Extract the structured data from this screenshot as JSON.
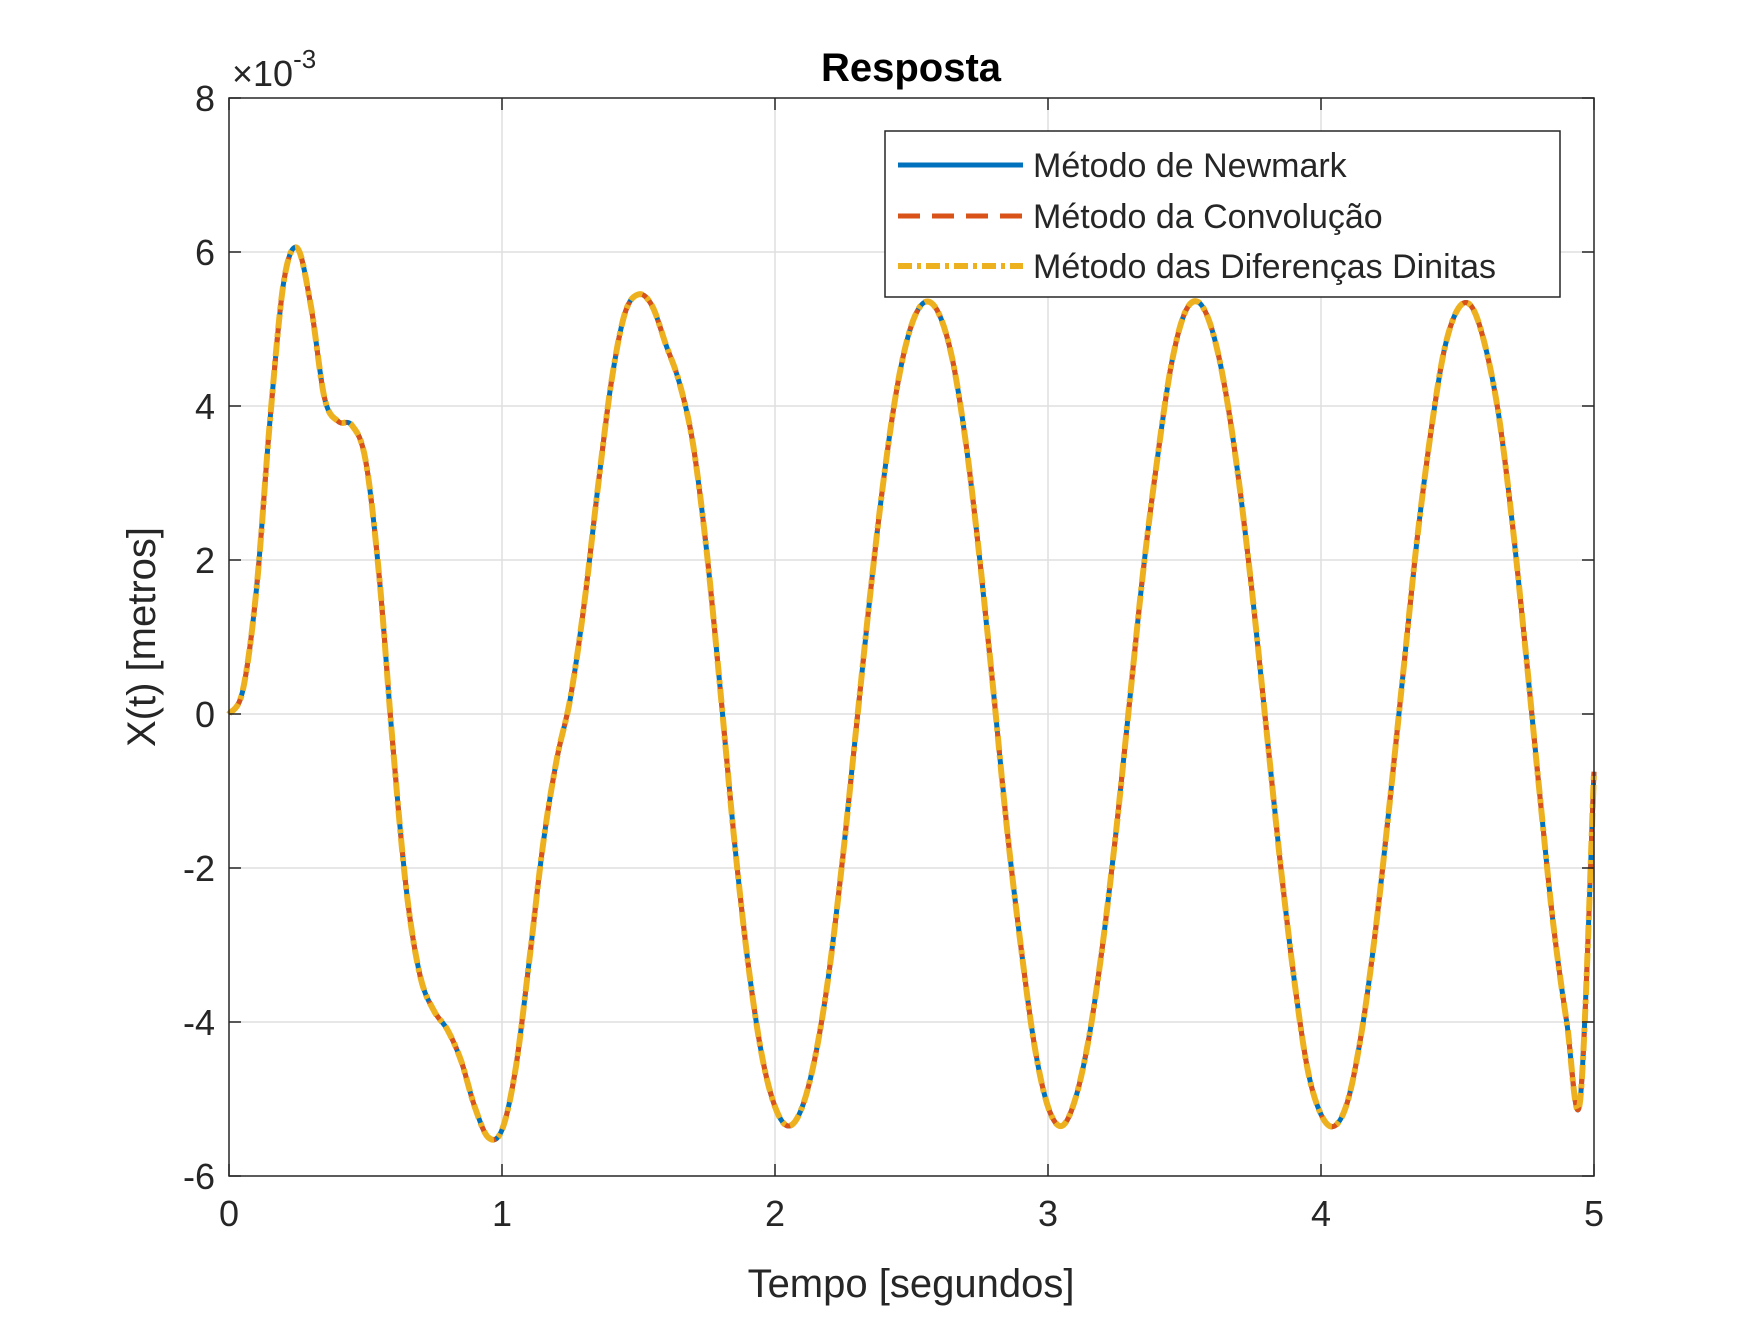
{
  "chart_data": {
    "type": "line",
    "title": "Resposta",
    "xlabel": "Tempo [segundos]",
    "ylabel": "X(t) [metros]",
    "xlim": [
      0,
      5
    ],
    "ylim": [
      -6,
      8
    ],
    "y_exponent_base": "10",
    "y_exponent_power": "-3",
    "grid": true,
    "legend_position": "top-right",
    "x_ticks": [
      0,
      1,
      2,
      3,
      4,
      5
    ],
    "x_tick_labels": [
      "0",
      "1",
      "2",
      "3",
      "4",
      "5"
    ],
    "y_ticks": [
      -6,
      -4,
      -2,
      0,
      2,
      4,
      6,
      8
    ],
    "y_tick_labels": [
      "-6",
      "-4",
      "-2",
      "0",
      "2",
      "4",
      "6",
      "8"
    ],
    "x": [
      0,
      0.05,
      0.1,
      0.15,
      0.2,
      0.25,
      0.3,
      0.35,
      0.4,
      0.45,
      0.5,
      0.55,
      0.6,
      0.65,
      0.7,
      0.75,
      0.8,
      0.85,
      0.9,
      0.95,
      1.0,
      1.05,
      1.1,
      1.15,
      1.2,
      1.25,
      1.3,
      1.35,
      1.4,
      1.45,
      1.5,
      1.55,
      1.6,
      1.65,
      1.7,
      1.75,
      1.8,
      1.85,
      1.9,
      1.95,
      2.0,
      2.05,
      2.1,
      2.15,
      2.2,
      2.25,
      2.3,
      2.35,
      2.4,
      2.45,
      2.5,
      2.55,
      2.6,
      2.65,
      2.7,
      2.75,
      2.8,
      2.85,
      2.9,
      2.95,
      3.0,
      3.05,
      3.1,
      3.15,
      3.2,
      3.25,
      3.3,
      3.35,
      3.4,
      3.45,
      3.5,
      3.55,
      3.6,
      3.65,
      3.7,
      3.75,
      3.8,
      3.85,
      3.9,
      3.95,
      4.0,
      4.05,
      4.1,
      4.15,
      4.2,
      4.25,
      4.3,
      4.35,
      4.4,
      4.45,
      4.5,
      4.55,
      4.6,
      4.65,
      4.7,
      4.75,
      4.8,
      4.85,
      4.9,
      4.95,
      5.0
    ],
    "series": [
      {
        "name": "Método de Newmark",
        "color": "#0072BD",
        "style": "solid",
        "values": [
          0,
          0.3,
          1.6,
          3.8,
          5.6,
          6.05,
          5.3,
          4.1,
          3.8,
          3.75,
          3.3,
          1.8,
          -0.4,
          -2.3,
          -3.4,
          -3.85,
          -4.1,
          -4.5,
          -5.1,
          -5.5,
          -5.4,
          -4.6,
          -3.2,
          -1.7,
          -0.6,
          0.2,
          1.4,
          2.9,
          4.3,
          5.2,
          5.45,
          5.3,
          4.8,
          4.3,
          3.5,
          2.1,
          0.3,
          -1.6,
          -3.2,
          -4.4,
          -5.1,
          -5.35,
          -5.1,
          -4.4,
          -3.3,
          -1.8,
          -0.1,
          1.6,
          3.1,
          4.3,
          5.05,
          5.35,
          5.2,
          4.6,
          3.5,
          2.0,
          0.3,
          -1.5,
          -3.0,
          -4.3,
          -5.1,
          -5.35,
          -5.0,
          -4.2,
          -3.0,
          -1.5,
          0.2,
          1.9,
          3.3,
          4.5,
          5.2,
          5.35,
          5.0,
          4.2,
          3.0,
          1.5,
          -0.2,
          -1.9,
          -3.4,
          -4.6,
          -5.2,
          -5.35,
          -5.0,
          -4.1,
          -2.8,
          -1.2,
          0.5,
          2.2,
          3.6,
          4.7,
          5.25,
          5.3,
          4.8,
          3.9,
          2.5,
          0.8,
          -1.0,
          -2.7,
          -4.0,
          -5.0,
          -0.75
        ]
      },
      {
        "name": "Método da Convolução",
        "color": "#D95319",
        "style": "dashed",
        "values": [
          0,
          0.3,
          1.6,
          3.8,
          5.6,
          6.05,
          5.3,
          4.1,
          3.8,
          3.75,
          3.3,
          1.8,
          -0.4,
          -2.3,
          -3.4,
          -3.85,
          -4.1,
          -4.5,
          -5.1,
          -5.5,
          -5.4,
          -4.6,
          -3.2,
          -1.7,
          -0.6,
          0.2,
          1.4,
          2.9,
          4.3,
          5.2,
          5.45,
          5.3,
          4.8,
          4.3,
          3.5,
          2.1,
          0.3,
          -1.6,
          -3.2,
          -4.4,
          -5.1,
          -5.35,
          -5.1,
          -4.4,
          -3.3,
          -1.8,
          -0.1,
          1.6,
          3.1,
          4.3,
          5.05,
          5.35,
          5.2,
          4.6,
          3.5,
          2.0,
          0.3,
          -1.5,
          -3.0,
          -4.3,
          -5.1,
          -5.35,
          -5.0,
          -4.2,
          -3.0,
          -1.5,
          0.2,
          1.9,
          3.3,
          4.5,
          5.2,
          5.35,
          5.0,
          4.2,
          3.0,
          1.5,
          -0.2,
          -1.9,
          -3.4,
          -4.6,
          -5.2,
          -5.35,
          -5.0,
          -4.1,
          -2.8,
          -1.2,
          0.5,
          2.2,
          3.6,
          4.7,
          5.25,
          5.3,
          4.8,
          3.9,
          2.5,
          0.8,
          -1.0,
          -2.7,
          -4.0,
          -5.0,
          -0.75
        ]
      },
      {
        "name": "Método das Diferenças Dinitas",
        "color": "#EDB120",
        "style": "dash-dot",
        "values": [
          0,
          0.3,
          1.6,
          3.8,
          5.6,
          6.05,
          5.3,
          4.1,
          3.8,
          3.75,
          3.3,
          1.8,
          -0.4,
          -2.3,
          -3.4,
          -3.85,
          -4.1,
          -4.5,
          -5.1,
          -5.5,
          -5.4,
          -4.6,
          -3.2,
          -1.7,
          -0.6,
          0.2,
          1.4,
          2.9,
          4.3,
          5.2,
          5.45,
          5.3,
          4.8,
          4.3,
          3.5,
          2.1,
          0.3,
          -1.6,
          -3.2,
          -4.4,
          -5.1,
          -5.35,
          -5.1,
          -4.4,
          -3.3,
          -1.8,
          -0.1,
          1.6,
          3.1,
          4.3,
          5.05,
          5.35,
          5.2,
          4.6,
          3.5,
          2.0,
          0.3,
          -1.5,
          -3.0,
          -4.3,
          -5.1,
          -5.35,
          -5.0,
          -4.2,
          -3.0,
          -1.5,
          0.2,
          1.9,
          3.3,
          4.5,
          5.2,
          5.35,
          5.0,
          4.2,
          3.0,
          1.5,
          -0.2,
          -1.9,
          -3.4,
          -4.6,
          -5.2,
          -5.35,
          -5.0,
          -4.1,
          -2.8,
          -1.2,
          0.5,
          2.2,
          3.6,
          4.7,
          5.25,
          5.3,
          4.8,
          3.9,
          2.5,
          0.8,
          -1.0,
          -2.7,
          -4.0,
          -5.0,
          -0.75
        ]
      }
    ]
  }
}
